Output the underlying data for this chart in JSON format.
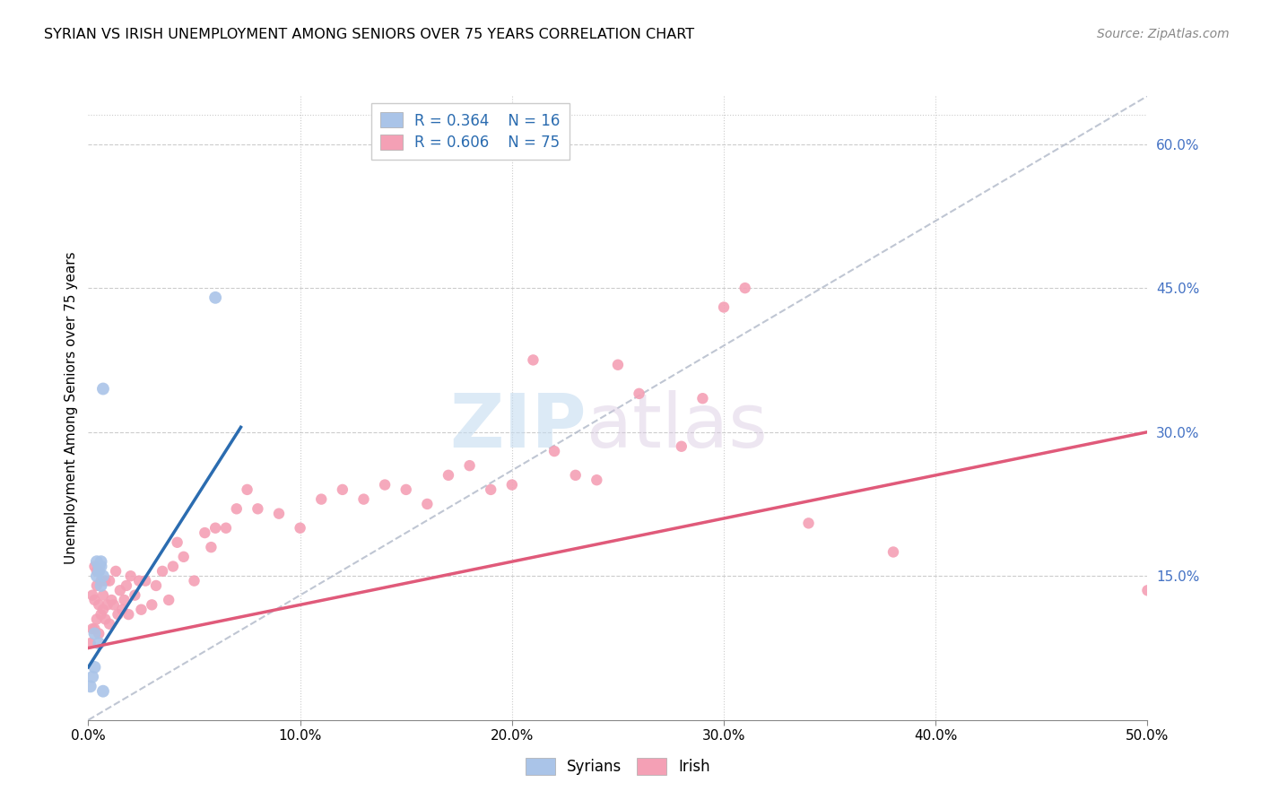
{
  "title": "SYRIAN VS IRISH UNEMPLOYMENT AMONG SENIORS OVER 75 YEARS CORRELATION CHART",
  "source": "Source: ZipAtlas.com",
  "ylabel": "Unemployment Among Seniors over 75 years",
  "xlim": [
    0.0,
    0.5
  ],
  "ylim": [
    0.0,
    0.65
  ],
  "xticks": [
    0.0,
    0.1,
    0.2,
    0.3,
    0.4,
    0.5
  ],
  "yticks": [
    0.0,
    0.15,
    0.3,
    0.45,
    0.6
  ],
  "xtick_labels": [
    "0.0%",
    "10.0%",
    "20.0%",
    "30.0%",
    "40.0%",
    "50.0%"
  ],
  "ytick_labels": [
    "",
    "15.0%",
    "30.0%",
    "45.0%",
    "60.0%"
  ],
  "background_color": "#ffffff",
  "grid_color": "#cccccc",
  "watermark_zip": "ZIP",
  "watermark_atlas": "atlas",
  "legend_R_syrian": "R = 0.364",
  "legend_N_syrian": "N = 16",
  "legend_R_irish": "R = 0.606",
  "legend_N_irish": "N = 75",
  "syrian_color": "#aac4e8",
  "irish_color": "#f4a0b5",
  "syrian_line_color": "#2b6cb0",
  "irish_line_color": "#e05a7a",
  "diag_color": "#b0b8c8",
  "syrian_marker_size": 100,
  "irish_marker_size": 80,
  "syrian_x": [
    0.001,
    0.002,
    0.003,
    0.003,
    0.004,
    0.004,
    0.005,
    0.005,
    0.005,
    0.006,
    0.006,
    0.006,
    0.007,
    0.007,
    0.06,
    0.007
  ],
  "syrian_y": [
    0.035,
    0.045,
    0.09,
    0.055,
    0.15,
    0.165,
    0.155,
    0.16,
    0.08,
    0.14,
    0.16,
    0.165,
    0.15,
    0.03,
    0.44,
    0.345
  ],
  "irish_x": [
    0.001,
    0.002,
    0.002,
    0.003,
    0.003,
    0.003,
    0.004,
    0.004,
    0.004,
    0.005,
    0.005,
    0.005,
    0.006,
    0.006,
    0.007,
    0.007,
    0.008,
    0.008,
    0.009,
    0.01,
    0.01,
    0.011,
    0.012,
    0.013,
    0.014,
    0.015,
    0.016,
    0.017,
    0.018,
    0.019,
    0.02,
    0.022,
    0.024,
    0.025,
    0.027,
    0.03,
    0.032,
    0.035,
    0.038,
    0.04,
    0.042,
    0.045,
    0.05,
    0.055,
    0.058,
    0.06,
    0.065,
    0.07,
    0.075,
    0.08,
    0.09,
    0.1,
    0.11,
    0.12,
    0.13,
    0.14,
    0.15,
    0.16,
    0.17,
    0.18,
    0.19,
    0.2,
    0.21,
    0.22,
    0.23,
    0.24,
    0.25,
    0.26,
    0.28,
    0.29,
    0.3,
    0.31,
    0.34,
    0.38,
    0.5
  ],
  "irish_y": [
    0.08,
    0.095,
    0.13,
    0.095,
    0.125,
    0.16,
    0.105,
    0.14,
    0.155,
    0.09,
    0.12,
    0.155,
    0.11,
    0.145,
    0.115,
    0.13,
    0.105,
    0.145,
    0.12,
    0.1,
    0.145,
    0.125,
    0.12,
    0.155,
    0.11,
    0.135,
    0.115,
    0.125,
    0.14,
    0.11,
    0.15,
    0.13,
    0.145,
    0.115,
    0.145,
    0.12,
    0.14,
    0.155,
    0.125,
    0.16,
    0.185,
    0.17,
    0.145,
    0.195,
    0.18,
    0.2,
    0.2,
    0.22,
    0.24,
    0.22,
    0.215,
    0.2,
    0.23,
    0.24,
    0.23,
    0.245,
    0.24,
    0.225,
    0.255,
    0.265,
    0.24,
    0.245,
    0.375,
    0.28,
    0.255,
    0.25,
    0.37,
    0.34,
    0.285,
    0.335,
    0.43,
    0.45,
    0.205,
    0.175,
    0.135
  ],
  "syrian_line_x": [
    0.0,
    0.072
  ],
  "syrian_line_y": [
    0.055,
    0.305
  ],
  "irish_line_x": [
    0.0,
    0.5
  ],
  "irish_line_y": [
    0.075,
    0.3
  ]
}
